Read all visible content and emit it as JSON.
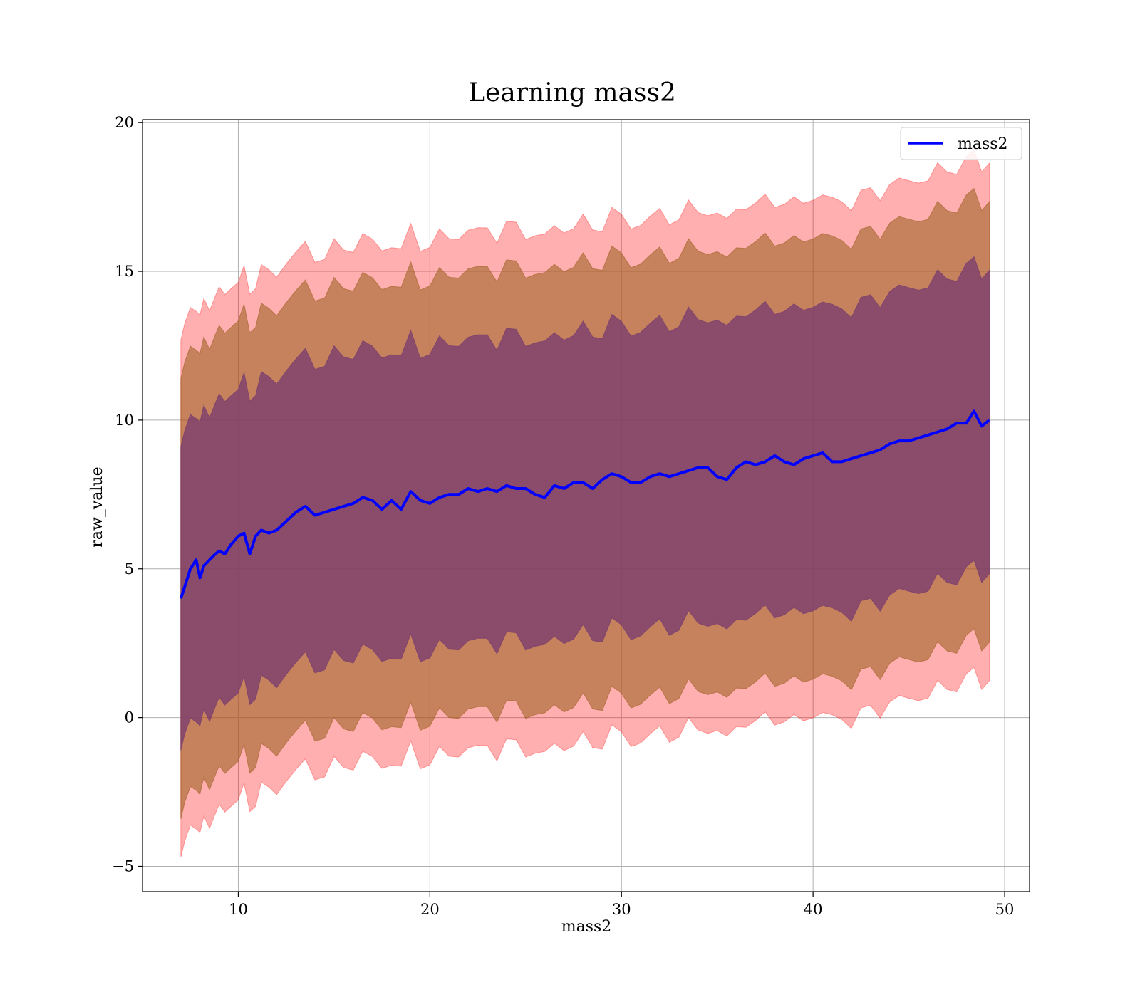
{
  "chart_data": {
    "type": "line",
    "title": "Learning mass2",
    "xlabel": "mass2",
    "ylabel": "raw_value",
    "xlim": [
      5,
      51.3
    ],
    "ylim": [
      -5.85,
      20.1
    ],
    "grid": true,
    "legend_position": "top-right",
    "x_ticks": [
      10,
      20,
      30,
      40,
      50
    ],
    "y_ticks": [
      -5,
      0,
      5,
      10,
      15,
      20
    ],
    "x_tick_labels": [
      "10",
      "20",
      "30",
      "40",
      "50"
    ],
    "y_tick_labels": [
      "−5",
      "0",
      "5",
      "10",
      "15",
      "20"
    ],
    "colors": {
      "line": "#0000ff",
      "band_outer": "#ff000050",
      "band_middle": "#a0632699",
      "band_inner": "#7a3e6ecc",
      "grid": "#b0b0b0"
    },
    "series": [
      {
        "name": "mass2",
        "x": [
          7.0,
          7.2,
          7.5,
          7.8,
          8.0,
          8.2,
          8.5,
          8.8,
          9.0,
          9.3,
          9.6,
          10.0,
          10.3,
          10.6,
          10.9,
          11.2,
          11.6,
          12.0,
          12.5,
          13.0,
          13.5,
          14.0,
          14.5,
          15.0,
          15.5,
          16.0,
          16.5,
          17.0,
          17.5,
          18.0,
          18.5,
          19.0,
          19.5,
          20.0,
          20.5,
          21.0,
          21.5,
          22.0,
          22.5,
          23.0,
          23.5,
          24.0,
          24.5,
          25.0,
          25.5,
          26.0,
          26.5,
          27.0,
          27.5,
          28.0,
          28.5,
          29.0,
          29.5,
          30.0,
          30.5,
          31.0,
          31.5,
          32.0,
          32.5,
          33.0,
          33.5,
          34.0,
          34.5,
          35.0,
          35.5,
          36.0,
          36.5,
          37.0,
          37.5,
          38.0,
          38.5,
          39.0,
          39.5,
          40.0,
          40.5,
          41.0,
          41.5,
          42.0,
          42.5,
          43.0,
          43.5,
          44.0,
          44.5,
          45.0,
          45.5,
          46.0,
          46.5,
          47.0,
          47.5,
          48.0,
          48.4,
          48.8,
          49.2
        ],
        "y": [
          4.0,
          4.4,
          5.0,
          5.3,
          4.7,
          5.1,
          5.3,
          5.5,
          5.6,
          5.5,
          5.8,
          6.1,
          6.2,
          5.5,
          6.1,
          6.3,
          6.2,
          6.3,
          6.6,
          6.9,
          7.1,
          6.8,
          6.9,
          7.0,
          7.1,
          7.2,
          7.4,
          7.3,
          7.0,
          7.3,
          7.0,
          7.6,
          7.3,
          7.2,
          7.4,
          7.5,
          7.5,
          7.7,
          7.6,
          7.7,
          7.6,
          7.8,
          7.7,
          7.7,
          7.5,
          7.4,
          7.8,
          7.7,
          7.9,
          7.9,
          7.7,
          8.0,
          8.2,
          8.1,
          7.9,
          7.9,
          8.1,
          8.2,
          8.1,
          8.2,
          8.3,
          8.4,
          8.4,
          8.1,
          8.0,
          8.4,
          8.6,
          8.5,
          8.6,
          8.8,
          8.6,
          8.5,
          8.7,
          8.8,
          8.9,
          8.6,
          8.6,
          8.7,
          8.8,
          8.9,
          9.0,
          9.2,
          9.3,
          9.3,
          9.4,
          9.5,
          9.6,
          9.7,
          9.9,
          9.9,
          10.3,
          9.8,
          10.0
        ],
        "bands": [
          {
            "name": "inner",
            "half_width": 5.1
          },
          {
            "name": "middle",
            "half_width": 7.4
          },
          {
            "name": "outer",
            "half_width": 8.7
          }
        ]
      }
    ]
  }
}
